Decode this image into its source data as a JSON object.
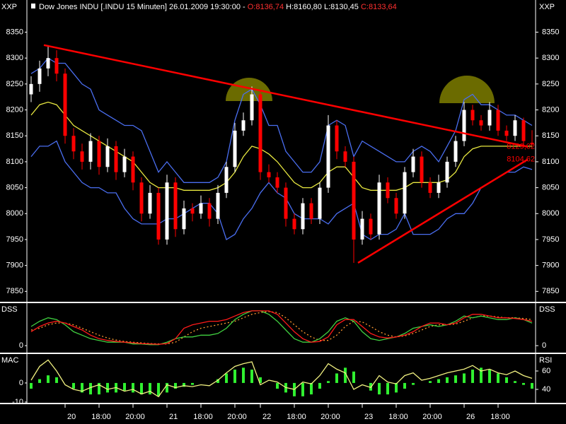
{
  "chart_data": [
    {
      "type": "candlestick",
      "title": "Dow Jones INDU [.INDU  15 Minuten] 26.01.2009 19:30:00 - ",
      "ohlc_labels": [
        {
          "text": "O:8136,74",
          "color": "#ff3030"
        },
        {
          "text": "H:8160,80",
          "color": "#ffffff"
        },
        {
          "text": "L:8130,45",
          "color": "#ffffff"
        },
        {
          "text": "C:8133,64",
          "color": "#ff3030"
        }
      ],
      "axis_label": "XXP",
      "categories": [
        null,
        null,
        null,
        null,
        "20",
        null,
        null,
        null,
        "18:00",
        null,
        null,
        null,
        "20:00",
        null,
        null,
        null,
        "21",
        null,
        null,
        null,
        "18:00",
        null,
        null,
        null,
        "20:00",
        null,
        null,
        "22",
        null,
        null,
        null,
        "18:00",
        null,
        null,
        null,
        "20:00",
        null,
        null,
        null,
        "23",
        null,
        null,
        null,
        "18:00",
        null,
        null,
        null,
        "20:00",
        null,
        null,
        null,
        "26",
        null,
        null,
        null,
        "18:00",
        null,
        null,
        null,
        null
      ],
      "open": [
        8230,
        8250,
        8280,
        8300,
        8270,
        8150,
        8120,
        8100,
        8140,
        8090,
        8130,
        8080,
        8110,
        8060,
        8000,
        8040,
        7950,
        8060,
        7970,
        8010,
        8000,
        8020,
        7990,
        8040,
        8090,
        8160,
        8180,
        8230,
        8080,
        8070,
        8050,
        7990,
        7970,
        8020,
        7990,
        8050,
        8170,
        8120,
        8100,
        7950,
        7990,
        7960,
        8060,
        8030,
        8000,
        8080,
        8110,
        8060,
        8040,
        8060,
        8100,
        8140,
        8200,
        8180,
        8170,
        8200,
        8160,
        8150,
        8180,
        8136.74
      ],
      "high": [
        8265,
        8295,
        8325,
        8315,
        8280,
        8165,
        8135,
        8155,
        8150,
        8145,
        8140,
        8125,
        8120,
        8070,
        8055,
        8050,
        8075,
        8070,
        8025,
        8020,
        8035,
        8030,
        8055,
        8100,
        8175,
        8195,
        8245,
        8235,
        8095,
        8080,
        8060,
        8000,
        8030,
        8030,
        8060,
        8190,
        8180,
        8130,
        8110,
        8005,
        8000,
        8075,
        8070,
        8040,
        8090,
        8125,
        8120,
        8070,
        8075,
        8110,
        8150,
        8215,
        8210,
        8190,
        8215,
        8210,
        8170,
        8190,
        8185,
        8160.8
      ],
      "low": [
        8215,
        8235,
        8265,
        8255,
        8135,
        8105,
        8085,
        8085,
        8075,
        8080,
        8065,
        8070,
        8045,
        7985,
        7990,
        7940,
        7940,
        7955,
        7960,
        7985,
        7990,
        7975,
        7980,
        8030,
        8080,
        8150,
        8170,
        8065,
        8060,
        8040,
        7975,
        7960,
        7960,
        7980,
        7980,
        8040,
        8105,
        8090,
        7905,
        7940,
        7950,
        7950,
        8020,
        7990,
        7990,
        8070,
        8050,
        8030,
        8030,
        8050,
        8090,
        8130,
        8170,
        8160,
        8160,
        8150,
        8140,
        8140,
        8130,
        8130.45
      ],
      "close": [
        8250,
        8280,
        8300,
        8270,
        8150,
        8120,
        8100,
        8140,
        8090,
        8130,
        8080,
        8110,
        8060,
        8000,
        8040,
        7950,
        8060,
        7970,
        8010,
        8000,
        8020,
        7990,
        8040,
        8090,
        8160,
        8180,
        8230,
        8080,
        8070,
        8050,
        7990,
        7970,
        8020,
        7990,
        8050,
        8170,
        8120,
        8100,
        7950,
        7990,
        7960,
        8060,
        8030,
        8000,
        8080,
        8110,
        8060,
        8040,
        8060,
        8100,
        8140,
        8200,
        8180,
        8170,
        8200,
        8160,
        8150,
        8180,
        8140,
        8133.64
      ],
      "up_color": "#ffffff",
      "down_color": "#ff0000",
      "series": [
        {
          "color": "#4a6ef0",
          "values": [
            8270,
            8280,
            8300,
            8290,
            8290,
            8270,
            8250,
            8240,
            8200,
            8190,
            8180,
            8170,
            8170,
            8160,
            8120,
            8080,
            8100,
            8080,
            8060,
            8060,
            8060,
            8060,
            8070,
            8100,
            8180,
            8230,
            8240,
            8210,
            8170,
            8170,
            8120,
            8100,
            8080,
            8080,
            8100,
            8170,
            8180,
            8170,
            8110,
            8140,
            8130,
            8120,
            8110,
            8100,
            8100,
            8120,
            8130,
            8120,
            8100,
            8130,
            8160,
            8220,
            8230,
            8210,
            8210,
            8200,
            8190,
            8190,
            8180,
            8170
          ]
        },
        {
          "color": "#e8e840",
          "values": [
            8190,
            8210,
            8215,
            8210,
            8190,
            8170,
            8160,
            8150,
            8140,
            8130,
            8120,
            8110,
            8100,
            8080,
            8060,
            8050,
            8050,
            8050,
            8045,
            8045,
            8045,
            8045,
            8050,
            8060,
            8080,
            8110,
            8130,
            8125,
            8115,
            8100,
            8080,
            8060,
            8050,
            8050,
            8060,
            8080,
            8090,
            8090,
            8070,
            8050,
            8045,
            8045,
            8045,
            8045,
            8050,
            8060,
            8060,
            8060,
            8060,
            8065,
            8080,
            8110,
            8125,
            8130,
            8130,
            8130,
            8130,
            8130,
            8130,
            8130
          ]
        },
        {
          "color": "#4a6ef0",
          "values": [
            8110,
            8130,
            8130,
            8140,
            8100,
            8080,
            8060,
            8050,
            8050,
            8040,
            8040,
            8010,
            7990,
            7980,
            7980,
            7980,
            7990,
            7990,
            8000,
            8010,
            8020,
            8020,
            8000,
            7950,
            7960,
            7990,
            8010,
            8040,
            8060,
            8040,
            8030,
            8000,
            7990,
            7990,
            7990,
            7980,
            8000,
            8010,
            8020,
            7960,
            7950,
            7960,
            7960,
            7970,
            8000,
            7960,
            7960,
            7960,
            7970,
            7990,
            8000,
            8000,
            8020,
            8050,
            8060,
            8070,
            8080,
            8080,
            8090,
            8085
          ]
        }
      ],
      "trendlines": [
        {
          "x": [
            1.5,
            58.5
          ],
          "values": [
            8325,
            8129.02
          ],
          "value_label": "8129,02",
          "color": "#ff0000"
        },
        {
          "x": [
            38.5,
            58.5
          ],
          "values": [
            7905,
            8104.62
          ],
          "value_label": "8104,62",
          "color": "#ff0000"
        }
      ],
      "ylim": [
        7830,
        8412
      ],
      "yticks": [
        7850,
        7900,
        7950,
        8000,
        8050,
        8100,
        8150,
        8200,
        8250,
        8300,
        8350
      ]
    },
    {
      "type": "line",
      "axis_label": "DSS",
      "ylim": [
        -18,
        120
      ],
      "yticks": [
        0
      ],
      "series": [
        {
          "color": "#ff9a30",
          "style": "dotted",
          "values": [
            45,
            50,
            60,
            65,
            65,
            60,
            50,
            40,
            30,
            22,
            16,
            12,
            10,
            8,
            6,
            5,
            5,
            10,
            25,
            40,
            50,
            55,
            60,
            65,
            70,
            80,
            90,
            95,
            98,
            95,
            80,
            60,
            40,
            25,
            15,
            15,
            30,
            55,
            70,
            68,
            55,
            40,
            30,
            25,
            28,
            35,
            45,
            55,
            60,
            60,
            62,
            70,
            80,
            85,
            85,
            82,
            80,
            80,
            78,
            75
          ]
        },
        {
          "color": "#40d040",
          "values": [
            55,
            70,
            80,
            75,
            60,
            40,
            30,
            20,
            15,
            10,
            10,
            10,
            5,
            5,
            3,
            3,
            10,
            20,
            25,
            25,
            30,
            30,
            35,
            50,
            75,
            90,
            100,
            100,
            90,
            70,
            45,
            20,
            10,
            10,
            20,
            40,
            70,
            80,
            70,
            40,
            20,
            15,
            20,
            25,
            35,
            50,
            55,
            60,
            55,
            60,
            70,
            85,
            80,
            85,
            80,
            75,
            75,
            80,
            75,
            65
          ]
        },
        {
          "color": "#ff1a1a",
          "values": [
            40,
            55,
            65,
            70,
            65,
            55,
            45,
            30,
            20,
            15,
            12,
            10,
            8,
            6,
            5,
            4,
            6,
            20,
            50,
            60,
            65,
            70,
            70,
            75,
            85,
            95,
            100,
            100,
            100,
            90,
            65,
            40,
            20,
            10,
            12,
            25,
            60,
            75,
            75,
            55,
            35,
            25,
            22,
            25,
            30,
            40,
            55,
            65,
            65,
            60,
            65,
            80,
            90,
            90,
            85,
            80,
            80,
            78,
            75,
            70
          ]
        }
      ]
    },
    {
      "type": "combo",
      "axis_label": "MAC",
      "y2_axis_label": "RSI",
      "ylim": [
        -10.4,
        14.8
      ],
      "yticks": [
        -10,
        0
      ],
      "y2lim": [
        25.4,
        77.7
      ],
      "y2ticks": [
        40,
        60
      ],
      "series": [
        {
          "type": "bar",
          "color": "#30f030",
          "values": [
            -3,
            2,
            4,
            3,
            0,
            -3,
            -5,
            -6,
            -6,
            -5,
            -5,
            -4,
            -5,
            -6,
            -6,
            -7,
            -5,
            -3,
            -2,
            -1,
            0,
            0,
            2,
            5,
            7,
            8,
            7,
            3,
            0,
            -3,
            -5,
            -7,
            -7,
            -6,
            -3,
            1,
            5,
            8,
            6,
            0,
            -4,
            -6,
            -6,
            -5,
            -3,
            -1,
            0,
            1,
            2,
            3,
            4,
            5,
            7,
            8,
            7,
            5,
            3,
            1,
            -1,
            -3
          ]
        },
        {
          "type": "line",
          "axis": "y2",
          "color": "#f0f080",
          "values": [
            50,
            65,
            72,
            60,
            45,
            40,
            38,
            42,
            45,
            40,
            42,
            38,
            40,
            35,
            38,
            32,
            45,
            42,
            44,
            43,
            45,
            44,
            50,
            58,
            65,
            68,
            70,
            45,
            50,
            48,
            42,
            40,
            48,
            46,
            55,
            68,
            62,
            58,
            40,
            45,
            42,
            55,
            48,
            46,
            55,
            58,
            50,
            52,
            55,
            58,
            60,
            62,
            66,
            60,
            62,
            58,
            56,
            60,
            55,
            52
          ]
        }
      ]
    }
  ]
}
